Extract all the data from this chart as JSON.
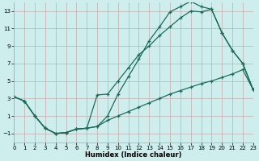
{
  "xlabel": "Humidex (Indice chaleur)",
  "bg_color": "#cdeeed",
  "grid_color": "#c8aaaa",
  "line_color": "#1a6b5a",
  "xlim": [
    0,
    23
  ],
  "ylim": [
    -2,
    14
  ],
  "xticks": [
    0,
    1,
    2,
    3,
    4,
    5,
    6,
    7,
    8,
    9,
    10,
    11,
    12,
    13,
    14,
    15,
    16,
    17,
    18,
    19,
    20,
    21,
    22,
    23
  ],
  "yticks": [
    -1,
    1,
    3,
    5,
    7,
    9,
    11,
    13
  ],
  "line1_x": [
    0,
    1,
    2,
    3,
    4,
    5,
    6,
    7,
    8,
    9,
    10,
    11,
    12,
    13,
    14,
    15,
    16,
    17,
    18,
    19,
    20,
    21,
    22,
    23
  ],
  "line1_y": [
    3.2,
    2.7,
    1.0,
    -0.4,
    -1.0,
    -0.9,
    -0.5,
    -0.4,
    -0.2,
    1.0,
    3.5,
    5.5,
    7.5,
    9.6,
    11.2,
    12.9,
    13.5,
    14.1,
    13.5,
    13.2,
    10.5,
    8.5,
    7.0,
    4.0
  ],
  "line2_x": [
    0,
    1,
    2,
    3,
    4,
    5,
    6,
    7,
    8,
    9,
    10,
    11,
    12,
    13,
    14,
    15,
    16,
    17,
    18,
    19,
    20,
    21,
    22,
    23
  ],
  "line2_y": [
    3.2,
    2.7,
    1.0,
    -0.4,
    -1.0,
    -0.9,
    -0.5,
    -0.4,
    3.4,
    3.5,
    5.0,
    6.5,
    8.0,
    9.0,
    10.2,
    11.2,
    12.2,
    13.0,
    12.9,
    13.2,
    10.5,
    8.5,
    7.0,
    4.0
  ],
  "line3_x": [
    0,
    1,
    2,
    3,
    4,
    5,
    6,
    7,
    8,
    9,
    10,
    11,
    12,
    13,
    14,
    15,
    16,
    17,
    18,
    19,
    20,
    21,
    22,
    23
  ],
  "line3_y": [
    3.2,
    2.7,
    1.0,
    -0.4,
    -1.0,
    -0.9,
    -0.5,
    -0.4,
    -0.2,
    0.5,
    1.0,
    1.5,
    2.0,
    2.5,
    3.0,
    3.5,
    3.9,
    4.3,
    4.7,
    5.0,
    5.4,
    5.8,
    6.3,
    4.0
  ]
}
